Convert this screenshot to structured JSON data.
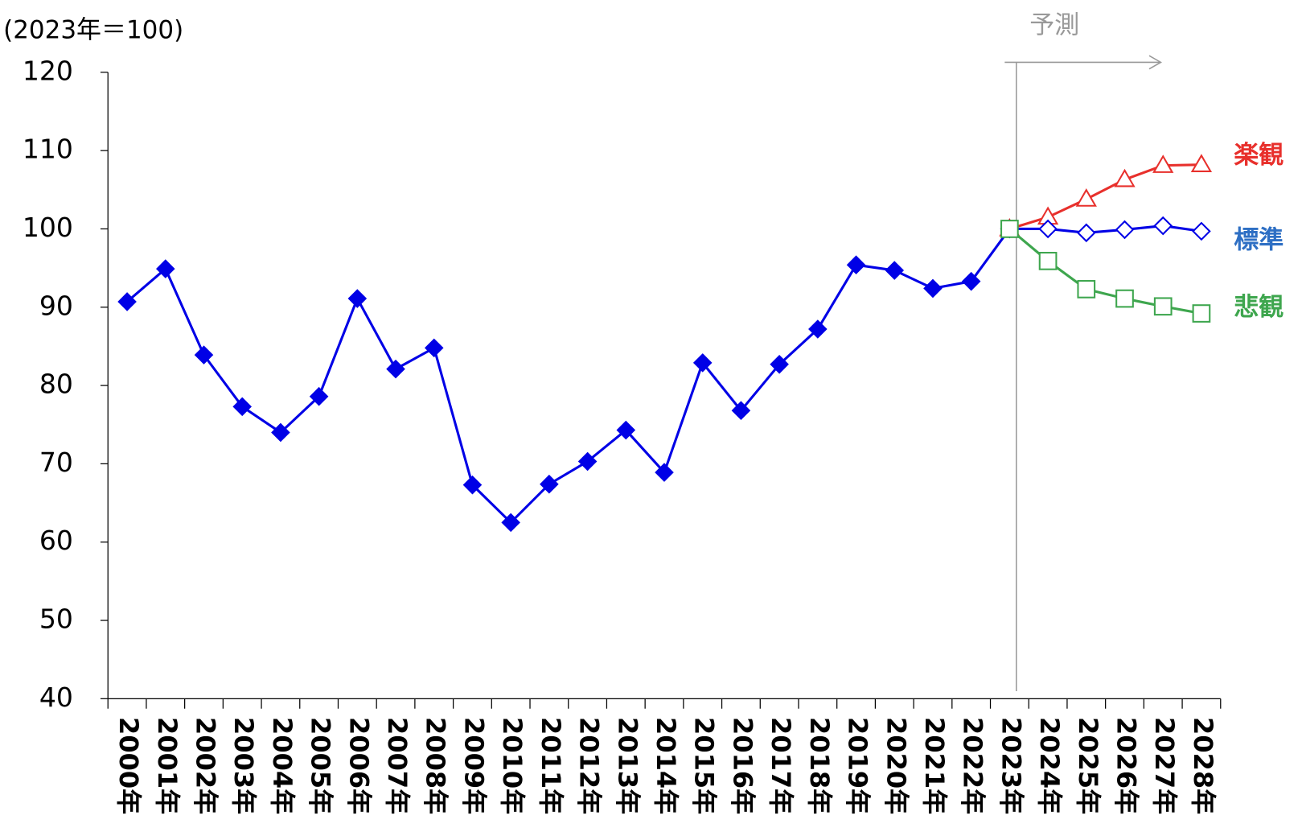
{
  "chart_data": {
    "type": "line",
    "y_unit_label": "(2023年＝100)",
    "annotation": "予測",
    "categories": [
      "2000年",
      "2001年",
      "2002年",
      "2003年",
      "2004年",
      "2005年",
      "2006年",
      "2007年",
      "2008年",
      "2009年",
      "2010年",
      "2011年",
      "2012年",
      "2013年",
      "2014年",
      "2015年",
      "2016年",
      "2017年",
      "2018年",
      "2019年",
      "2020年",
      "2021年",
      "2022年",
      "2023年",
      "2024年",
      "2025年",
      "2026年",
      "2027年",
      "2028年"
    ],
    "ylim": [
      40,
      120
    ],
    "yticks": [
      40,
      50,
      60,
      70,
      80,
      90,
      100,
      110,
      120
    ],
    "series": [
      {
        "color": "#0000e6",
        "marker": "diamond",
        "filled": true,
        "values": [
          90.7,
          94.9,
          83.9,
          77.3,
          74.0,
          78.6,
          91.1,
          82.1,
          84.8,
          67.3,
          62.5,
          67.4,
          70.3,
          74.3,
          68.9,
          82.9,
          76.8,
          82.7,
          87.2,
          95.4,
          94.7,
          92.4,
          93.3,
          100,
          null,
          null,
          null,
          null,
          null
        ]
      },
      {
        "name": "楽観",
        "color": "#e8302c",
        "marker": "triangle",
        "filled": false,
        "values": [
          null,
          null,
          null,
          null,
          null,
          null,
          null,
          null,
          null,
          null,
          null,
          null,
          null,
          null,
          null,
          null,
          null,
          null,
          null,
          null,
          null,
          null,
          null,
          100,
          101.5,
          103.8,
          106.3,
          108.1,
          108.2
        ]
      },
      {
        "name": "標準",
        "color": "#0000e6",
        "label_color": "#2e6fc4",
        "marker": "diamond",
        "filled": false,
        "values": [
          null,
          null,
          null,
          null,
          null,
          null,
          null,
          null,
          null,
          null,
          null,
          null,
          null,
          null,
          null,
          null,
          null,
          null,
          null,
          null,
          null,
          null,
          null,
          100,
          100.0,
          99.5,
          99.9,
          100.4,
          99.7
        ]
      },
      {
        "name": "悲観",
        "color": "#3ea64e",
        "marker": "square",
        "filled": false,
        "values": [
          null,
          null,
          null,
          null,
          null,
          null,
          null,
          null,
          null,
          null,
          null,
          null,
          null,
          null,
          null,
          null,
          null,
          null,
          null,
          null,
          null,
          null,
          null,
          100,
          95.9,
          92.3,
          91.1,
          90.1,
          89.2
        ]
      }
    ]
  }
}
